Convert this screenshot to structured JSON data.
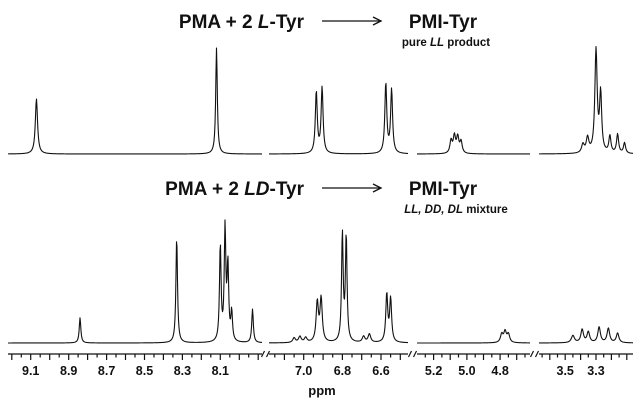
{
  "chart_data": {
    "type": "line",
    "title": "",
    "xlabel": "ppm",
    "x_direction": "decreasing",
    "x_axis_segments": [
      {
        "range": [
          9.22,
          7.88
        ],
        "ticks": [
          "9.1",
          "8.9",
          "8.7",
          "8.5",
          "8.3",
          "8.1"
        ]
      },
      {
        "range": [
          7.18,
          6.46
        ],
        "ticks": [
          "7.0",
          "6.8",
          "6.6"
        ]
      },
      {
        "range": [
          5.3,
          4.62
        ],
        "ticks": [
          "5.2",
          "5.0",
          "4.8"
        ]
      },
      {
        "range": [
          3.67,
          3.06
        ],
        "ticks": [
          "3.5",
          "3.3"
        ]
      }
    ],
    "panels": [
      {
        "reaction": {
          "reactants": [
            "PMA + 2 ",
            "L",
            "-Tyr"
          ],
          "product": "PMI-Tyr",
          "note": [
            "pure ",
            "LL",
            " product"
          ]
        },
        "peaks": [
          {
            "x": 9.07,
            "h": 0.52,
            "w": 0.007
          },
          {
            "x": 8.12,
            "h": 1.0,
            "w": 0.005
          },
          {
            "x": 6.935,
            "h": 0.58,
            "w": 0.006
          },
          {
            "x": 6.905,
            "h": 0.62,
            "w": 0.006
          },
          {
            "x": 6.575,
            "h": 0.66,
            "w": 0.006
          },
          {
            "x": 6.545,
            "h": 0.6,
            "w": 0.006
          },
          {
            "x": 5.095,
            "h": 0.12,
            "w": 0.008
          },
          {
            "x": 5.075,
            "h": 0.16,
            "w": 0.008
          },
          {
            "x": 5.055,
            "h": 0.15,
            "w": 0.008
          },
          {
            "x": 5.035,
            "h": 0.11,
            "w": 0.008
          },
          {
            "x": 3.385,
            "h": 0.08,
            "w": 0.01
          },
          {
            "x": 3.355,
            "h": 0.14,
            "w": 0.01
          },
          {
            "x": 3.3,
            "h": 0.97,
            "w": 0.009
          },
          {
            "x": 3.27,
            "h": 0.55,
            "w": 0.008
          },
          {
            "x": 3.21,
            "h": 0.16,
            "w": 0.008
          },
          {
            "x": 3.16,
            "h": 0.18,
            "w": 0.008
          },
          {
            "x": 3.115,
            "h": 0.1,
            "w": 0.008
          }
        ]
      },
      {
        "reaction": {
          "reactants": [
            "PMA + 2 ",
            "LD",
            "-Tyr"
          ],
          "product": "PMI-Tyr",
          "note": [
            "LL, DD, DL",
            " mixture"
          ]
        },
        "peaks": [
          {
            "x": 8.84,
            "h": 0.21,
            "w": 0.005
          },
          {
            "x": 8.33,
            "h": 0.88,
            "w": 0.005
          },
          {
            "x": 8.1,
            "h": 0.8,
            "w": 0.005
          },
          {
            "x": 8.075,
            "h": 0.93,
            "w": 0.005
          },
          {
            "x": 8.06,
            "h": 0.62,
            "w": 0.005
          },
          {
            "x": 8.04,
            "h": 0.24,
            "w": 0.005
          },
          {
            "x": 7.93,
            "h": 0.28,
            "w": 0.005
          },
          {
            "x": 7.05,
            "h": 0.04,
            "w": 0.008
          },
          {
            "x": 7.02,
            "h": 0.05,
            "w": 0.008
          },
          {
            "x": 6.99,
            "h": 0.04,
            "w": 0.008
          },
          {
            "x": 6.93,
            "h": 0.33,
            "w": 0.007
          },
          {
            "x": 6.91,
            "h": 0.36,
            "w": 0.007
          },
          {
            "x": 6.8,
            "h": 0.9,
            "w": 0.005
          },
          {
            "x": 6.78,
            "h": 0.88,
            "w": 0.005
          },
          {
            "x": 6.69,
            "h": 0.05,
            "w": 0.008
          },
          {
            "x": 6.66,
            "h": 0.07,
            "w": 0.008
          },
          {
            "x": 6.57,
            "h": 0.4,
            "w": 0.006
          },
          {
            "x": 6.55,
            "h": 0.36,
            "w": 0.006
          },
          {
            "x": 4.79,
            "h": 0.07,
            "w": 0.009
          },
          {
            "x": 4.77,
            "h": 0.09,
            "w": 0.009
          },
          {
            "x": 4.75,
            "h": 0.07,
            "w": 0.009
          },
          {
            "x": 3.45,
            "h": 0.06,
            "w": 0.012
          },
          {
            "x": 3.39,
            "h": 0.11,
            "w": 0.01
          },
          {
            "x": 3.35,
            "h": 0.09,
            "w": 0.01
          },
          {
            "x": 3.28,
            "h": 0.13,
            "w": 0.01
          },
          {
            "x": 3.22,
            "h": 0.12,
            "w": 0.01
          },
          {
            "x": 3.16,
            "h": 0.08,
            "w": 0.01
          }
        ]
      }
    ]
  }
}
